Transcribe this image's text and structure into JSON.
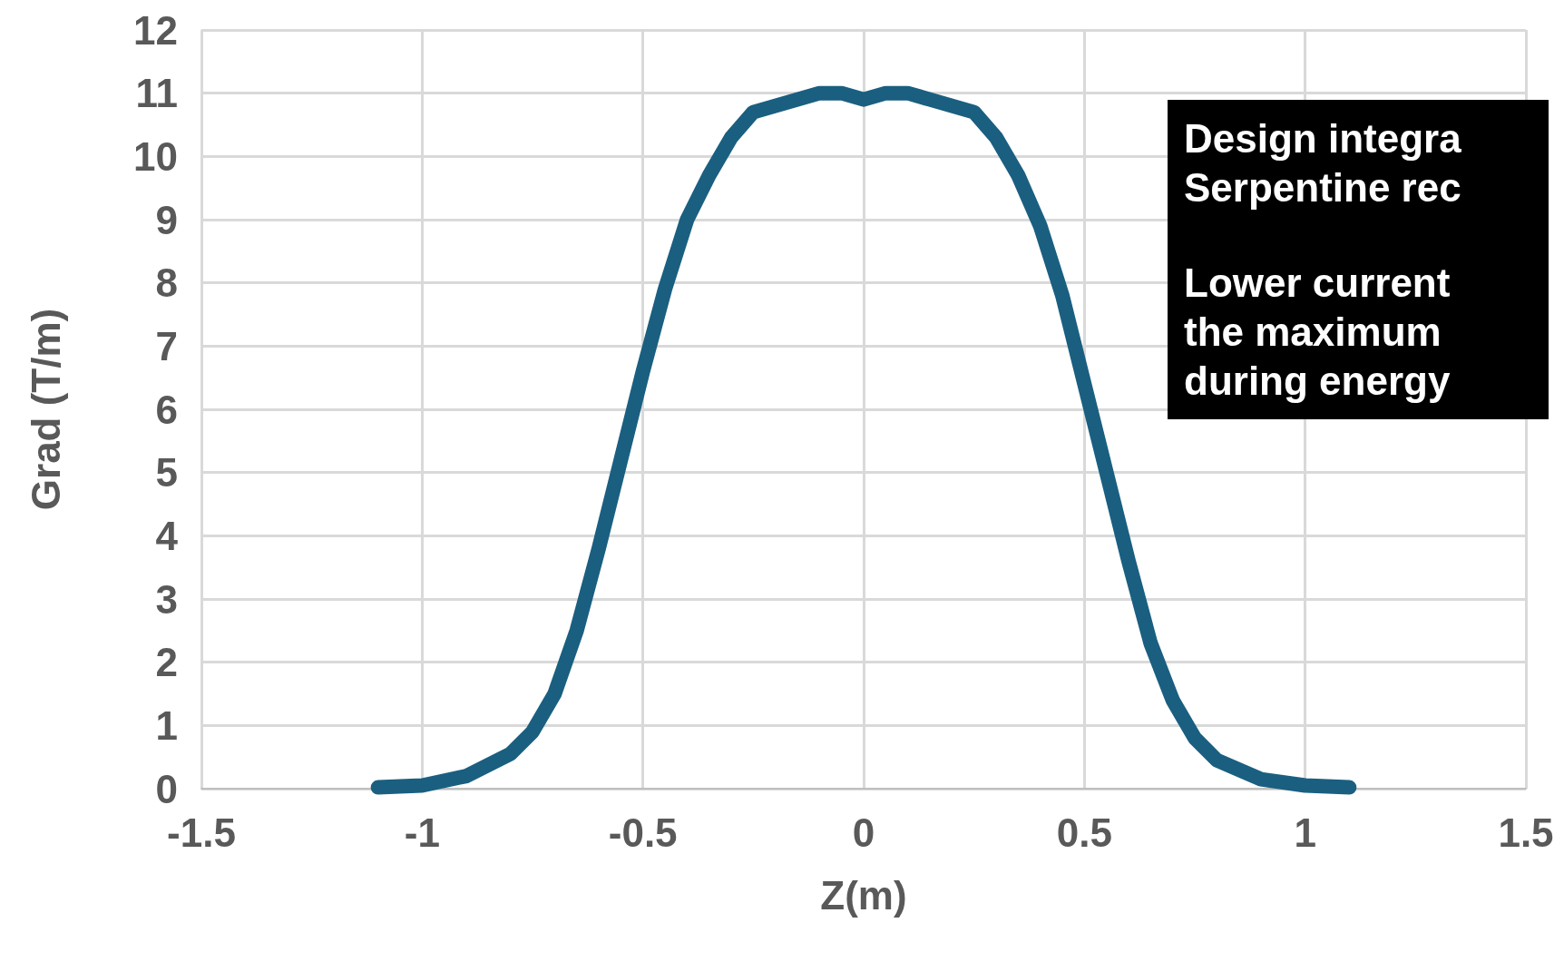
{
  "chart_data": {
    "type": "line",
    "xlabel": "Z(m)",
    "ylabel": "Grad (T/m)",
    "xlim": [
      -1.5,
      1.5
    ],
    "xticks": [
      -1.5,
      -1,
      -0.5,
      0,
      0.5,
      1,
      1.5
    ],
    "ylim": [
      0,
      12
    ],
    "yticks": [
      0,
      1,
      2,
      3,
      4,
      5,
      6,
      7,
      8,
      9,
      10,
      11,
      12
    ],
    "grid": true,
    "line_style": "solid",
    "series": [
      {
        "color": "#1a5f80",
        "x": [
          -1.1,
          -1.0,
          -0.9,
          -0.8,
          -0.75,
          -0.7,
          -0.65,
          -0.6,
          -0.55,
          -0.5,
          -0.45,
          -0.4,
          -0.35,
          -0.3,
          -0.25,
          -0.2,
          -0.15,
          -0.1,
          -0.05,
          0,
          0.05,
          0.1,
          0.15,
          0.2,
          0.25,
          0.3,
          0.35,
          0.4,
          0.45,
          0.5,
          0.55,
          0.6,
          0.65,
          0.7,
          0.75,
          0.8,
          0.9,
          1.0,
          1.1
        ],
        "values": [
          0.02,
          0.05,
          0.2,
          0.55,
          0.9,
          1.5,
          2.5,
          3.8,
          5.2,
          6.6,
          7.9,
          9.0,
          9.7,
          10.3,
          10.7,
          10.8,
          10.9,
          11.0,
          11.0,
          10.9,
          11.0,
          11.0,
          10.9,
          10.8,
          10.7,
          10.3,
          9.7,
          8.9,
          7.8,
          6.4,
          5.0,
          3.6,
          2.3,
          1.4,
          0.8,
          0.45,
          0.15,
          0.05,
          0.02
        ]
      }
    ],
    "annotations": [
      "Design integra\nSerpentine rec",
      "Lower current\nthe maximum\nduring energy"
    ]
  }
}
